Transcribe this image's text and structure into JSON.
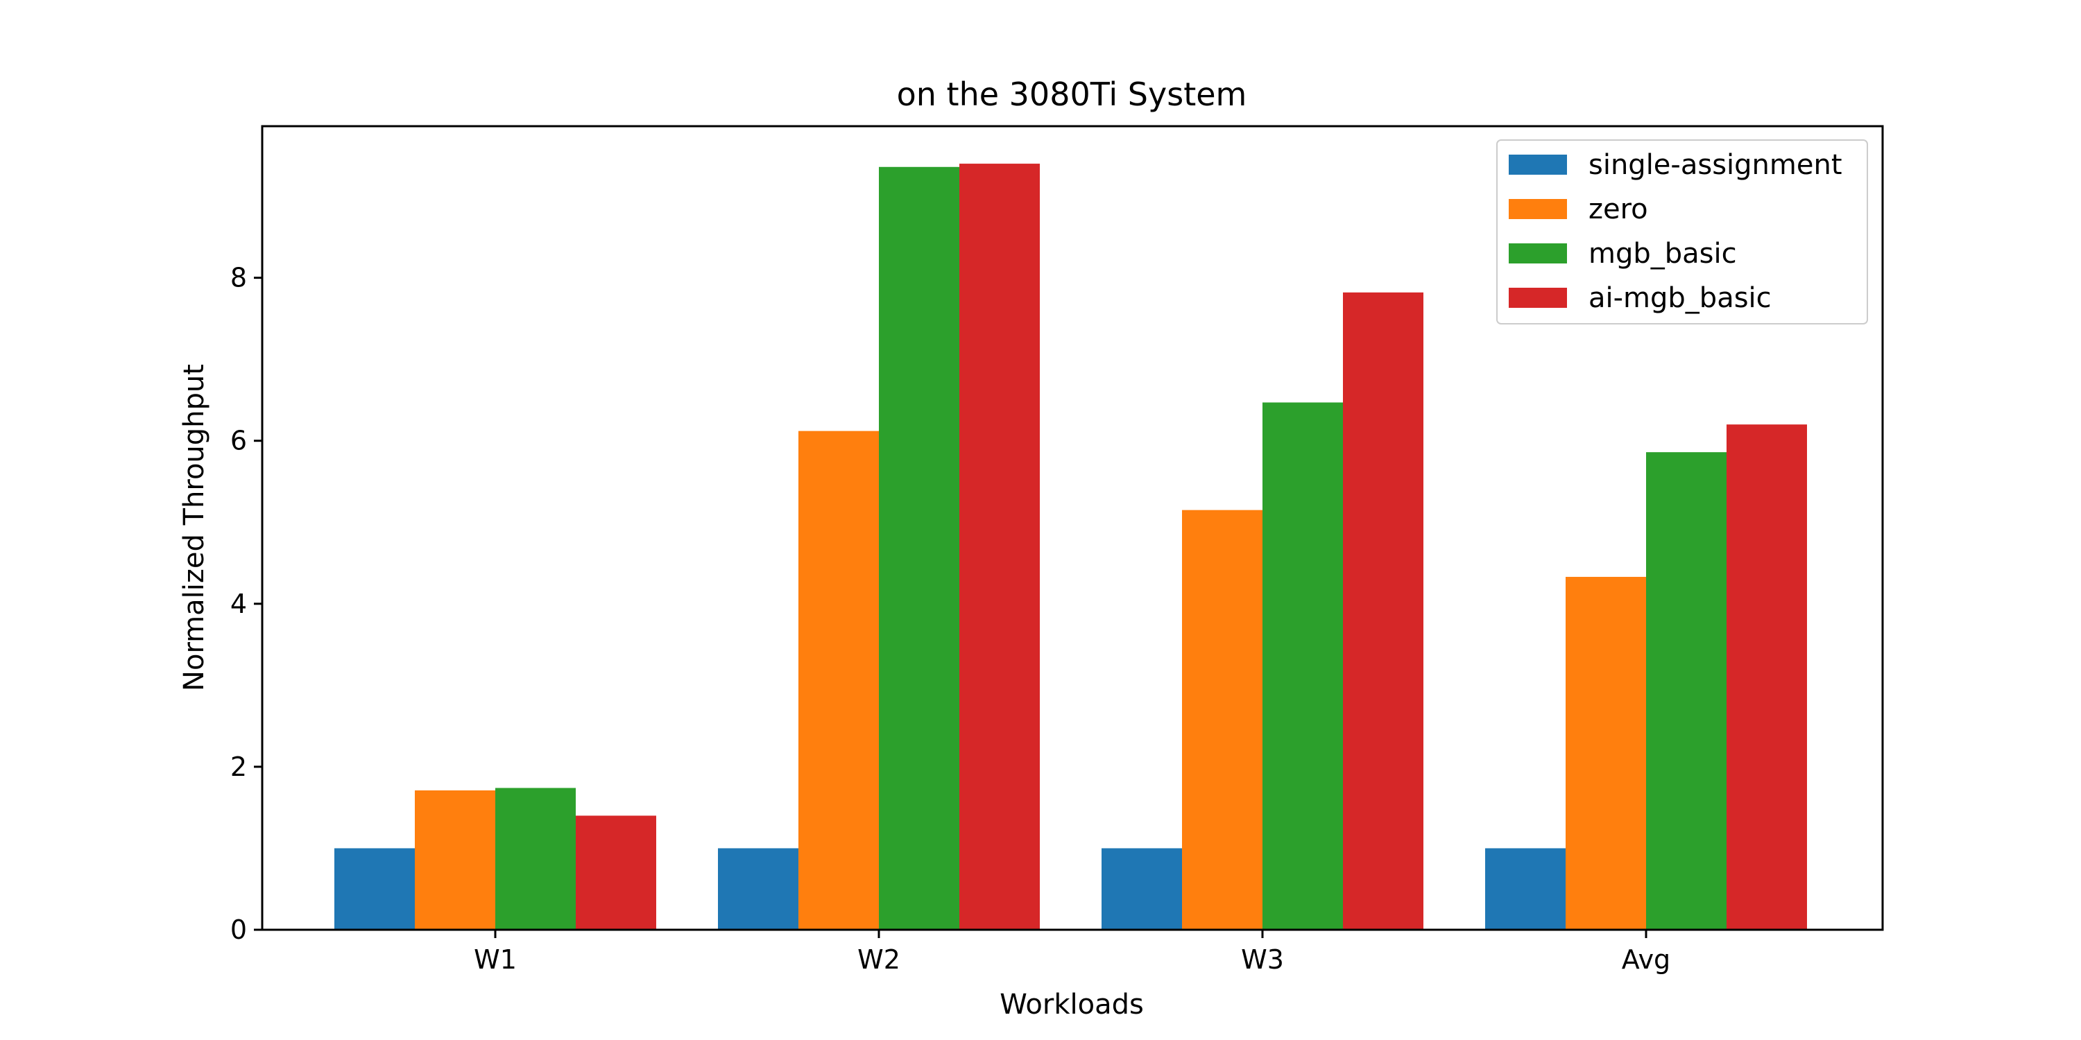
{
  "chart_data": {
    "type": "bar",
    "title": "on the 3080Ti System",
    "xlabel": "Workloads",
    "ylabel": "Normalized Throughput",
    "categories": [
      "W1",
      "W2",
      "W3",
      "Avg"
    ],
    "series": [
      {
        "name": "single-assignment",
        "color": "#1f77b4",
        "values": [
          1.0,
          1.0,
          1.0,
          1.0
        ]
      },
      {
        "name": "zero",
        "color": "#ff7f0e",
        "values": [
          1.71,
          6.12,
          5.15,
          4.33
        ]
      },
      {
        "name": "mgb_basic",
        "color": "#2ca02c",
        "values": [
          1.74,
          9.36,
          6.47,
          5.86
        ]
      },
      {
        "name": "ai-mgb_basic",
        "color": "#d62728",
        "values": [
          1.4,
          9.4,
          7.82,
          6.2
        ]
      }
    ],
    "ylim": [
      0,
      9.86
    ],
    "yticks": [
      0,
      2,
      4,
      6,
      8
    ],
    "grid": false,
    "legend_position": "top-right"
  }
}
